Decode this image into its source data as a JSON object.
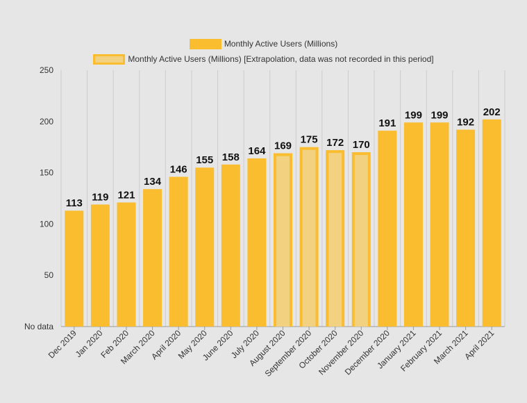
{
  "colors": {
    "bar": "#f9bd2f",
    "bar_extrapolated_fill": "#f2d281",
    "grid": "#cccccc",
    "axis": "#999999",
    "text": "#333333",
    "label": "#111111",
    "background": "#e6e6e6"
  },
  "legend": {
    "actual": "Monthly Active Users (Millions)",
    "extrapolated": "Monthly Active Users (Millions) [Extrapolation, data was not recorded in this period]"
  },
  "chart_data": {
    "type": "bar",
    "title": "",
    "xlabel": "",
    "ylabel": "",
    "ylim": [
      0,
      250
    ],
    "yticks": [
      0,
      50,
      100,
      150,
      200,
      250
    ],
    "ytick_labels": [
      "No data",
      "50",
      "100",
      "150",
      "200",
      "250"
    ],
    "grid": "vertical",
    "legend_position": "top",
    "categories": [
      "Dec 2019",
      "Jan 2020",
      "Feb 2020",
      "March 2020",
      "April 2020",
      "May 2020",
      "June 2020",
      "July 2020",
      "August 2020",
      "September 2020",
      "October 2020",
      "November 2020",
      "December 2020",
      "January 2021",
      "February 2021",
      "March 2021",
      "April 2021"
    ],
    "series": [
      {
        "name": "Monthly Active Users (Millions)",
        "values": [
          113,
          119,
          121,
          134,
          146,
          155,
          158,
          164,
          null,
          null,
          null,
          null,
          191,
          199,
          199,
          192,
          202
        ]
      },
      {
        "name": "Monthly Active Users (Millions) [Extrapolation, data was not recorded in this period]",
        "values": [
          null,
          null,
          null,
          null,
          null,
          null,
          null,
          null,
          169,
          175,
          172,
          170,
          null,
          null,
          null,
          null,
          null
        ]
      }
    ]
  }
}
